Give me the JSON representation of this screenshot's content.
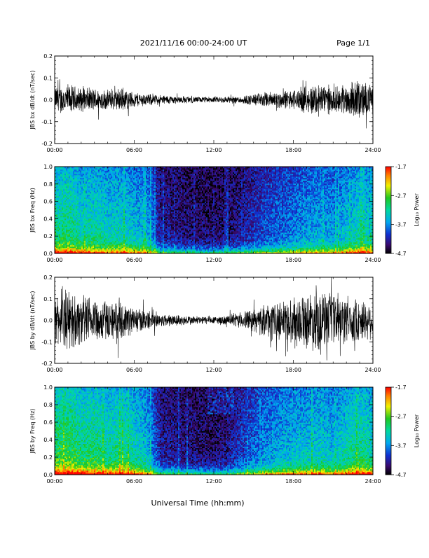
{
  "header": {
    "date_range": "2021/11/16  00:00-24:00 UT",
    "page": "Page 1/1"
  },
  "x_axis": {
    "label": "Universal Time (hh:mm)",
    "ticks": [
      "00:00",
      "06:00",
      "12:00",
      "18:00",
      "24:00"
    ],
    "range_hours": [
      0,
      24
    ]
  },
  "chart_data": [
    {
      "type": "line",
      "ylabel": "JBS bx dB/dt (nT/sec)",
      "ylim": [
        -0.2,
        0.2
      ],
      "yticks": [
        "0.2",
        "0.1",
        "0.0",
        "-0.1",
        "-0.2"
      ],
      "ytick_values": [
        0.2,
        0.1,
        0.0,
        -0.1,
        -0.2
      ],
      "envelope": {
        "x_hours": [
          0,
          1,
          2,
          3,
          4,
          5,
          6,
          7,
          8,
          9,
          10,
          11,
          12,
          13,
          14,
          15,
          16,
          17,
          18,
          19,
          20,
          21,
          22,
          23,
          24
        ],
        "amplitude": [
          0.07,
          0.08,
          0.06,
          0.06,
          0.05,
          0.06,
          0.04,
          0.03,
          0.025,
          0.02,
          0.018,
          0.015,
          0.015,
          0.018,
          0.02,
          0.03,
          0.04,
          0.045,
          0.05,
          0.07,
          0.09,
          0.06,
          0.08,
          0.1,
          0.07
        ]
      }
    },
    {
      "type": "heatmap",
      "ylabel": "JBS bx Freq (Hz)",
      "ylim": [
        0,
        1
      ],
      "yticks": [
        "1.0",
        "0.8",
        "0.6",
        "0.4",
        "0.2",
        "0.0"
      ],
      "ytick_values": [
        1.0,
        0.8,
        0.6,
        0.4,
        0.2,
        0.0
      ],
      "colorbar": {
        "label": "Log₁₀ Power",
        "ticks": [
          "-1.7",
          "-2.7",
          "-3.7",
          "-4.7"
        ],
        "range": [
          -4.7,
          -1.7
        ]
      },
      "time_activity": [
        0.75,
        0.8,
        0.7,
        0.72,
        0.65,
        0.68,
        0.6,
        0.55,
        0.2,
        0.18,
        0.15,
        0.13,
        0.12,
        0.14,
        0.2,
        0.28,
        0.35,
        0.4,
        0.45,
        0.5,
        0.55,
        0.5,
        0.6,
        0.7,
        0.6
      ]
    },
    {
      "type": "line",
      "ylabel": "JBS by dB/dt (nT/sec)",
      "ylim": [
        -0.2,
        0.2
      ],
      "yticks": [
        "0.2",
        "0.1",
        "0.0",
        "-0.1",
        "-0.2"
      ],
      "ytick_values": [
        0.2,
        0.1,
        0.0,
        -0.1,
        -0.2
      ],
      "envelope": {
        "x_hours": [
          0,
          1,
          2,
          3,
          4,
          5,
          6,
          7,
          8,
          9,
          10,
          11,
          12,
          13,
          14,
          15,
          16,
          17,
          18,
          19,
          20,
          21,
          22,
          23,
          24
        ],
        "amplitude": [
          0.12,
          0.15,
          0.13,
          0.12,
          0.1,
          0.09,
          0.07,
          0.05,
          0.035,
          0.03,
          0.025,
          0.022,
          0.02,
          0.025,
          0.04,
          0.06,
          0.08,
          0.1,
          0.12,
          0.14,
          0.16,
          0.13,
          0.12,
          0.11,
          0.09
        ]
      }
    },
    {
      "type": "heatmap",
      "ylabel": "JBS by Freq (Hz)",
      "ylim": [
        0,
        1
      ],
      "yticks": [
        "1.0",
        "0.8",
        "0.6",
        "0.4",
        "0.2",
        "0.0"
      ],
      "ytick_values": [
        1.0,
        0.8,
        0.6,
        0.4,
        0.2,
        0.0
      ],
      "colorbar": {
        "label": "Log₁₀ Power",
        "ticks": [
          "-1.7",
          "-2.7",
          "-3.7",
          "-4.7"
        ],
        "range": [
          -4.7,
          -1.7
        ]
      },
      "time_activity": [
        0.85,
        0.9,
        0.8,
        0.82,
        0.75,
        0.78,
        0.7,
        0.6,
        0.22,
        0.2,
        0.17,
        0.15,
        0.14,
        0.18,
        0.3,
        0.4,
        0.5,
        0.55,
        0.6,
        0.62,
        0.65,
        0.6,
        0.7,
        0.78,
        0.7
      ]
    }
  ]
}
